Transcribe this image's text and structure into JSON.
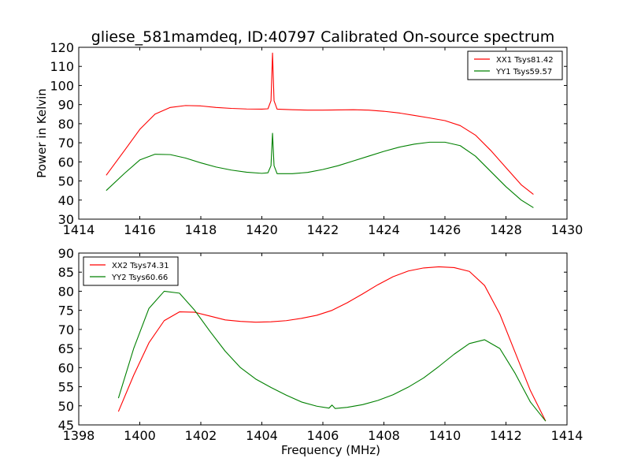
{
  "title": "gliese_581mamdeq, ID:40797 Calibrated On-source spectrum",
  "colors": {
    "XX": "#ff0000",
    "YY": "#008000",
    "axes": "#000000",
    "background": "#ffffff"
  },
  "chart_data": [
    {
      "type": "line",
      "title": "gliese_581mamdeq, ID:40797 Calibrated On-source spectrum",
      "xlabel": "",
      "ylabel": "Power in Kelvin",
      "xlim": [
        1414,
        1430
      ],
      "ylim": [
        30,
        120
      ],
      "xticks": [
        1414,
        1416,
        1418,
        1420,
        1422,
        1424,
        1426,
        1428,
        1430
      ],
      "yticks": [
        30,
        40,
        50,
        60,
        70,
        80,
        90,
        100,
        110,
        120
      ],
      "grid": false,
      "legend_position": "top-right",
      "series": [
        {
          "name": "XX1 Tsys81.42",
          "color": "#ff0000",
          "x": [
            1414.9,
            1415.5,
            1416.0,
            1416.5,
            1417.0,
            1417.5,
            1418.0,
            1418.5,
            1419.0,
            1419.5,
            1420.0,
            1420.2,
            1420.3,
            1420.35,
            1420.4,
            1420.5,
            1421.0,
            1421.5,
            1422.0,
            1422.5,
            1423.0,
            1423.5,
            1424.0,
            1424.5,
            1425.0,
            1425.5,
            1426.0,
            1426.5,
            1427.0,
            1427.5,
            1428.0,
            1428.5,
            1428.9
          ],
          "y": [
            53,
            66,
            77,
            85,
            88.5,
            89.5,
            89.3,
            88.5,
            88,
            87.7,
            87.6,
            87.8,
            92,
            117,
            92,
            87.6,
            87.3,
            87.1,
            87.1,
            87.2,
            87.3,
            87.1,
            86.5,
            85.6,
            84.3,
            83,
            81.6,
            79,
            74,
            66,
            57,
            48,
            43
          ]
        },
        {
          "name": "YY1 Tsys59.57",
          "color": "#008000",
          "x": [
            1414.9,
            1415.5,
            1416.0,
            1416.5,
            1417.0,
            1417.5,
            1418.0,
            1418.5,
            1419.0,
            1419.5,
            1420.0,
            1420.2,
            1420.3,
            1420.35,
            1420.4,
            1420.5,
            1421.0,
            1421.5,
            1422.0,
            1422.5,
            1423.0,
            1423.5,
            1424.0,
            1424.5,
            1425.0,
            1425.5,
            1426.0,
            1426.5,
            1427.0,
            1427.5,
            1428.0,
            1428.5,
            1428.9
          ],
          "y": [
            45,
            54,
            61,
            64,
            63.8,
            62,
            59.5,
            57.3,
            55.7,
            54.6,
            54,
            54.3,
            58,
            75,
            58,
            53.8,
            53.8,
            54.5,
            56,
            58,
            60.5,
            63,
            65.5,
            67.7,
            69.3,
            70.3,
            70.3,
            68.5,
            63,
            55,
            47,
            40,
            36
          ]
        }
      ]
    },
    {
      "type": "line",
      "title": "",
      "xlabel": "Frequency (MHz)",
      "ylabel": "",
      "xlim": [
        1398,
        1414
      ],
      "ylim": [
        45,
        90
      ],
      "xticks": [
        1398,
        1400,
        1402,
        1404,
        1406,
        1408,
        1410,
        1412,
        1414
      ],
      "yticks": [
        45,
        50,
        55,
        60,
        65,
        70,
        75,
        80,
        85,
        90
      ],
      "grid": false,
      "legend_position": "top-left",
      "series": [
        {
          "name": "XX2 Tsys74.31",
          "color": "#ff0000",
          "x": [
            1399.3,
            1399.8,
            1400.3,
            1400.8,
            1401.3,
            1401.8,
            1402.3,
            1402.8,
            1403.3,
            1403.8,
            1404.3,
            1404.8,
            1405.3,
            1405.8,
            1406.3,
            1406.8,
            1407.3,
            1407.8,
            1408.3,
            1408.8,
            1409.3,
            1409.8,
            1410.3,
            1410.8,
            1411.3,
            1411.8,
            1412.3,
            1412.8,
            1413.3
          ],
          "y": [
            48.5,
            58,
            66.5,
            72.3,
            74.6,
            74.5,
            73.5,
            72.5,
            72.1,
            71.9,
            72,
            72.3,
            72.9,
            73.7,
            75,
            77,
            79.3,
            81.7,
            83.8,
            85.3,
            86.1,
            86.4,
            86.2,
            85.2,
            81.5,
            74,
            64,
            54,
            46
          ]
        },
        {
          "name": "YY2 Tsys60.66",
          "color": "#008000",
          "x": [
            1399.3,
            1399.8,
            1400.3,
            1400.8,
            1401.3,
            1401.8,
            1402.3,
            1402.8,
            1403.3,
            1403.8,
            1404.3,
            1404.8,
            1405.3,
            1405.8,
            1406.2,
            1406.3,
            1406.4,
            1406.8,
            1407.3,
            1407.8,
            1408.3,
            1408.8,
            1409.3,
            1409.8,
            1410.3,
            1410.8,
            1411.3,
            1411.8,
            1412.3,
            1412.8,
            1413.3
          ],
          "y": [
            52,
            65,
            75.5,
            80,
            79.5,
            75,
            69.5,
            64.3,
            60,
            57,
            54.8,
            52.8,
            51,
            49.9,
            49.4,
            50.2,
            49.3,
            49.6,
            50.3,
            51.4,
            52.9,
            54.9,
            57.3,
            60.3,
            63.5,
            66.3,
            67.3,
            65,
            58.5,
            51,
            46
          ]
        }
      ]
    }
  ]
}
